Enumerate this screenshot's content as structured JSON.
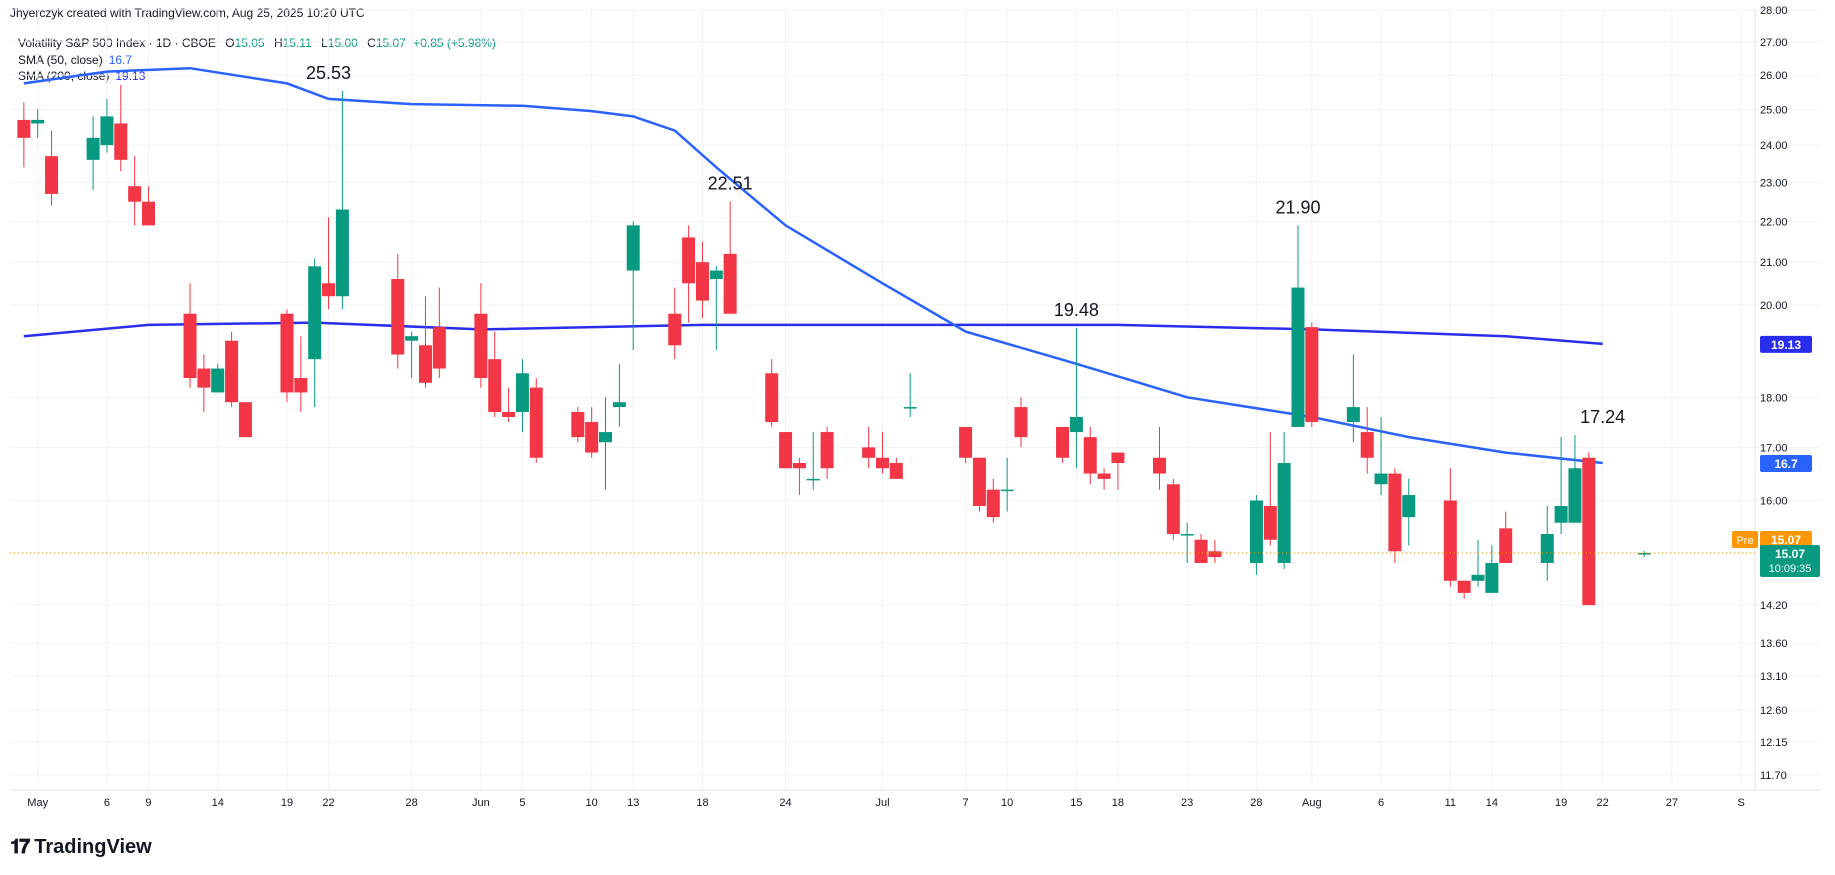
{
  "header": {
    "attribution": "Jhyerczyk created with TradingView.com, Aug 25, 2025 10:20 UTC"
  },
  "legend": {
    "symbol": "Volatility S&P 500 Index · 1D · CBOE",
    "open_label": "O",
    "open": "15.05",
    "high_label": "H",
    "high": "15.11",
    "low_label": "L",
    "low": "15.00",
    "close_label": "C",
    "close": "15.07",
    "change": "+0.85 (+5.98%)",
    "sma50_label": "SMA (50, close)",
    "sma50_value": "16.7",
    "sma200_label": "SMA (200, close)",
    "sma200_value": "19.13"
  },
  "logo": {
    "text": "TradingView",
    "icon": "tradingview-logo-icon"
  },
  "colors": {
    "up": "#089981",
    "down": "#f23645",
    "sma50": "#2962ff",
    "sma200": "#2a2eec",
    "pre": "#ff9800",
    "grid": "#f0f3fa"
  },
  "chart_data": {
    "type": "candlestick",
    "y_scale": "log",
    "ylim": [
      11.5,
      28.0
    ],
    "y_ticks": [
      "28.00",
      "27.00",
      "26.00",
      "25.00",
      "24.00",
      "23.00",
      "22.00",
      "21.00",
      "20.00",
      "18.00",
      "17.00",
      "16.00",
      "14.20",
      "13.60",
      "13.10",
      "12.60",
      "12.15",
      "11.70"
    ],
    "x_ticks": [
      {
        "label": "May",
        "date": "2025-05-01"
      },
      {
        "label": "6",
        "date": "2025-05-06"
      },
      {
        "label": "9",
        "date": "2025-05-09"
      },
      {
        "label": "14",
        "date": "2025-05-14"
      },
      {
        "label": "19",
        "date": "2025-05-19"
      },
      {
        "label": "22",
        "date": "2025-05-22"
      },
      {
        "label": "28",
        "date": "2025-05-28"
      },
      {
        "label": "Jun",
        "date": "2025-06-02"
      },
      {
        "label": "5",
        "date": "2025-06-05"
      },
      {
        "label": "10",
        "date": "2025-06-10"
      },
      {
        "label": "13",
        "date": "2025-06-13"
      },
      {
        "label": "18",
        "date": "2025-06-18"
      },
      {
        "label": "24",
        "date": "2025-06-24"
      },
      {
        "label": "Jul",
        "date": "2025-07-01"
      },
      {
        "label": "7",
        "date": "2025-07-07"
      },
      {
        "label": "10",
        "date": "2025-07-10"
      },
      {
        "label": "15",
        "date": "2025-07-15"
      },
      {
        "label": "18",
        "date": "2025-07-18"
      },
      {
        "label": "23",
        "date": "2025-07-23"
      },
      {
        "label": "28",
        "date": "2025-07-28"
      },
      {
        "label": "Aug",
        "date": "2025-08-01"
      },
      {
        "label": "6",
        "date": "2025-08-06"
      },
      {
        "label": "11",
        "date": "2025-08-11"
      },
      {
        "label": "14",
        "date": "2025-08-14"
      },
      {
        "label": "19",
        "date": "2025-08-19"
      },
      {
        "label": "22",
        "date": "2025-08-22"
      },
      {
        "label": "27",
        "date": "2025-08-27"
      },
      {
        "label": "S",
        "date": "2025-09-01"
      }
    ],
    "candles": [
      {
        "date": "2025-04-30",
        "o": 24.7,
        "h": 25.2,
        "l": 23.4,
        "c": 24.2
      },
      {
        "date": "2025-05-01",
        "o": 24.6,
        "h": 25.0,
        "l": 24.2,
        "c": 24.7
      },
      {
        "date": "2025-05-02",
        "o": 23.7,
        "h": 24.4,
        "l": 22.4,
        "c": 22.7
      },
      {
        "date": "2025-05-05",
        "o": 23.6,
        "h": 24.8,
        "l": 22.8,
        "c": 24.2
      },
      {
        "date": "2025-05-06",
        "o": 24.0,
        "h": 25.3,
        "l": 23.8,
        "c": 24.8
      },
      {
        "date": "2025-05-07",
        "o": 24.6,
        "h": 25.7,
        "l": 23.3,
        "c": 23.6
      },
      {
        "date": "2025-05-08",
        "o": 22.9,
        "h": 23.7,
        "l": 21.9,
        "c": 22.5
      },
      {
        "date": "2025-05-09",
        "o": 22.5,
        "h": 22.9,
        "l": 21.9,
        "c": 21.9
      },
      {
        "date": "2025-05-12",
        "o": 19.8,
        "h": 20.5,
        "l": 18.2,
        "c": 18.4
      },
      {
        "date": "2025-05-13",
        "o": 18.6,
        "h": 18.9,
        "l": 17.7,
        "c": 18.2
      },
      {
        "date": "2025-05-14",
        "o": 18.1,
        "h": 18.7,
        "l": 18.1,
        "c": 18.6
      },
      {
        "date": "2025-05-15",
        "o": 19.2,
        "h": 19.4,
        "l": 17.8,
        "c": 17.9
      },
      {
        "date": "2025-05-16",
        "o": 17.9,
        "h": 17.9,
        "l": 17.2,
        "c": 17.2
      },
      {
        "date": "2025-05-19",
        "o": 19.8,
        "h": 19.9,
        "l": 17.9,
        "c": 18.1
      },
      {
        "date": "2025-05-20",
        "o": 18.4,
        "h": 19.3,
        "l": 17.7,
        "c": 18.1
      },
      {
        "date": "2025-05-21",
        "o": 18.8,
        "h": 21.1,
        "l": 17.8,
        "c": 20.9
      },
      {
        "date": "2025-05-22",
        "o": 20.5,
        "h": 22.1,
        "l": 19.9,
        "c": 20.2
      },
      {
        "date": "2025-05-23",
        "o": 20.2,
        "h": 25.53,
        "l": 19.9,
        "c": 22.3
      },
      {
        "date": "2025-05-27",
        "o": 20.6,
        "h": 21.2,
        "l": 18.6,
        "c": 18.9
      },
      {
        "date": "2025-05-28",
        "o": 19.2,
        "h": 19.4,
        "l": 18.4,
        "c": 19.3
      },
      {
        "date": "2025-05-29",
        "o": 19.1,
        "h": 20.2,
        "l": 18.2,
        "c": 18.3
      },
      {
        "date": "2025-05-30",
        "o": 19.5,
        "h": 20.4,
        "l": 18.4,
        "c": 18.6
      },
      {
        "date": "2025-06-02",
        "o": 19.8,
        "h": 20.5,
        "l": 18.2,
        "c": 18.4
      },
      {
        "date": "2025-06-03",
        "o": 18.8,
        "h": 19.4,
        "l": 17.6,
        "c": 17.7
      },
      {
        "date": "2025-06-04",
        "o": 17.7,
        "h": 18.2,
        "l": 17.5,
        "c": 17.6
      },
      {
        "date": "2025-06-05",
        "o": 17.7,
        "h": 18.8,
        "l": 17.3,
        "c": 18.5
      },
      {
        "date": "2025-06-06",
        "o": 18.2,
        "h": 18.4,
        "l": 16.7,
        "c": 16.8
      },
      {
        "date": "2025-06-09",
        "o": 17.7,
        "h": 17.8,
        "l": 17.1,
        "c": 17.2
      },
      {
        "date": "2025-06-10",
        "o": 17.5,
        "h": 17.8,
        "l": 16.8,
        "c": 16.9
      },
      {
        "date": "2025-06-11",
        "o": 17.1,
        "h": 18.0,
        "l": 16.2,
        "c": 17.3
      },
      {
        "date": "2025-06-12",
        "o": 17.8,
        "h": 18.7,
        "l": 17.4,
        "c": 17.9
      },
      {
        "date": "2025-06-13",
        "o": 20.8,
        "h": 22.0,
        "l": 19.0,
        "c": 21.9
      },
      {
        "date": "2025-06-16",
        "o": 19.8,
        "h": 20.4,
        "l": 18.8,
        "c": 19.1
      },
      {
        "date": "2025-06-17",
        "o": 21.6,
        "h": 21.9,
        "l": 19.6,
        "c": 20.5
      },
      {
        "date": "2025-06-18",
        "o": 21.0,
        "h": 21.5,
        "l": 19.7,
        "c": 20.1
      },
      {
        "date": "2025-06-19",
        "o": 20.6,
        "h": 20.9,
        "l": 19.0,
        "c": 20.8
      },
      {
        "date": "2025-06-20",
        "o": 21.2,
        "h": 22.51,
        "l": 19.8,
        "c": 19.8
      },
      {
        "date": "2025-06-23",
        "o": 18.5,
        "h": 18.8,
        "l": 17.4,
        "c": 17.5
      },
      {
        "date": "2025-06-24",
        "o": 17.3,
        "h": 17.3,
        "l": 16.6,
        "c": 16.6
      },
      {
        "date": "2025-06-25",
        "o": 16.7,
        "h": 16.8,
        "l": 16.1,
        "c": 16.6
      },
      {
        "date": "2025-06-26",
        "o": 16.4,
        "h": 17.3,
        "l": 16.2,
        "c": 16.4
      },
      {
        "date": "2025-06-27",
        "o": 17.3,
        "h": 17.4,
        "l": 16.4,
        "c": 16.6
      },
      {
        "date": "2025-06-30",
        "o": 17.0,
        "h": 17.4,
        "l": 16.6,
        "c": 16.8
      },
      {
        "date": "2025-07-01",
        "o": 16.8,
        "h": 17.3,
        "l": 16.5,
        "c": 16.6
      },
      {
        "date": "2025-07-02",
        "o": 16.7,
        "h": 16.8,
        "l": 16.4,
        "c": 16.4
      },
      {
        "date": "2025-07-03",
        "o": 17.8,
        "h": 18.5,
        "l": 17.6,
        "c": 17.8
      },
      {
        "date": "2025-07-07",
        "o": 17.4,
        "h": 17.4,
        "l": 16.7,
        "c": 16.8
      },
      {
        "date": "2025-07-08",
        "o": 16.8,
        "h": 16.8,
        "l": 15.8,
        "c": 15.9
      },
      {
        "date": "2025-07-09",
        "o": 16.2,
        "h": 16.4,
        "l": 15.6,
        "c": 15.7
      },
      {
        "date": "2025-07-10",
        "o": 16.2,
        "h": 16.8,
        "l": 15.8,
        "c": 16.2
      },
      {
        "date": "2025-07-11",
        "o": 17.8,
        "h": 18.0,
        "l": 17.0,
        "c": 17.2
      },
      {
        "date": "2025-07-14",
        "o": 17.4,
        "h": 17.4,
        "l": 16.7,
        "c": 16.8
      },
      {
        "date": "2025-07-15",
        "o": 17.3,
        "h": 19.48,
        "l": 16.6,
        "c": 17.6
      },
      {
        "date": "2025-07-16",
        "o": 17.2,
        "h": 17.4,
        "l": 16.3,
        "c": 16.5
      },
      {
        "date": "2025-07-17",
        "o": 16.5,
        "h": 16.6,
        "l": 16.2,
        "c": 16.4
      },
      {
        "date": "2025-07-18",
        "o": 16.9,
        "h": 16.9,
        "l": 16.2,
        "c": 16.7
      },
      {
        "date": "2025-07-21",
        "o": 16.8,
        "h": 17.4,
        "l": 16.2,
        "c": 16.5
      },
      {
        "date": "2025-07-22",
        "o": 16.3,
        "h": 16.4,
        "l": 15.3,
        "c": 15.4
      },
      {
        "date": "2025-07-23",
        "o": 15.4,
        "h": 15.6,
        "l": 14.9,
        "c": 15.4
      },
      {
        "date": "2025-07-24",
        "o": 15.3,
        "h": 15.4,
        "l": 14.9,
        "c": 14.9
      },
      {
        "date": "2025-07-25",
        "o": 15.1,
        "h": 15.3,
        "l": 14.9,
        "c": 15.0
      },
      {
        "date": "2025-07-28",
        "o": 14.9,
        "h": 16.1,
        "l": 14.7,
        "c": 16.0
      },
      {
        "date": "2025-07-29",
        "o": 15.9,
        "h": 17.3,
        "l": 15.2,
        "c": 15.3
      },
      {
        "date": "2025-07-30",
        "o": 14.9,
        "h": 17.3,
        "l": 14.8,
        "c": 16.7
      },
      {
        "date": "2025-07-31",
        "o": 17.4,
        "h": 21.9,
        "l": 17.4,
        "c": 20.4
      },
      {
        "date": "2025-08-01",
        "o": 19.5,
        "h": 19.6,
        "l": 17.4,
        "c": 17.5
      },
      {
        "date": "2025-08-04",
        "o": 17.5,
        "h": 18.9,
        "l": 17.1,
        "c": 17.8
      },
      {
        "date": "2025-08-05",
        "o": 17.3,
        "h": 17.8,
        "l": 16.5,
        "c": 16.8
      },
      {
        "date": "2025-08-06",
        "o": 16.3,
        "h": 17.6,
        "l": 16.1,
        "c": 16.5
      },
      {
        "date": "2025-08-07",
        "o": 16.5,
        "h": 16.6,
        "l": 14.9,
        "c": 15.1
      },
      {
        "date": "2025-08-08",
        "o": 15.7,
        "h": 16.4,
        "l": 15.2,
        "c": 16.1
      },
      {
        "date": "2025-08-11",
        "o": 16.0,
        "h": 16.6,
        "l": 14.5,
        "c": 14.6
      },
      {
        "date": "2025-08-12",
        "o": 14.6,
        "h": 14.6,
        "l": 14.3,
        "c": 14.4
      },
      {
        "date": "2025-08-13",
        "o": 14.6,
        "h": 15.3,
        "l": 14.5,
        "c": 14.7
      },
      {
        "date": "2025-08-14",
        "o": 14.4,
        "h": 15.2,
        "l": 14.4,
        "c": 14.9
      },
      {
        "date": "2025-08-15",
        "o": 15.5,
        "h": 15.8,
        "l": 14.9,
        "c": 14.9
      },
      {
        "date": "2025-08-18",
        "o": 14.9,
        "h": 15.9,
        "l": 14.6,
        "c": 15.4
      },
      {
        "date": "2025-08-19",
        "o": 15.6,
        "h": 17.2,
        "l": 15.4,
        "c": 15.9
      },
      {
        "date": "2025-08-20",
        "o": 15.6,
        "h": 17.24,
        "l": 15.6,
        "c": 16.6
      },
      {
        "date": "2025-08-21",
        "o": 16.8,
        "h": 16.9,
        "l": 14.2,
        "c": 14.2
      },
      {
        "date": "2025-08-25",
        "o": 15.05,
        "h": 15.11,
        "l": 15.0,
        "c": 15.07
      }
    ],
    "sma50": [
      {
        "date": "2025-04-30",
        "v": 25.75
      },
      {
        "date": "2025-05-06",
        "v": 26.1
      },
      {
        "date": "2025-05-12",
        "v": 26.2
      },
      {
        "date": "2025-05-19",
        "v": 25.75
      },
      {
        "date": "2025-05-22",
        "v": 25.3
      },
      {
        "date": "2025-05-28",
        "v": 25.15
      },
      {
        "date": "2025-06-05",
        "v": 25.1
      },
      {
        "date": "2025-06-10",
        "v": 24.95
      },
      {
        "date": "2025-06-13",
        "v": 24.8
      },
      {
        "date": "2025-06-16",
        "v": 24.4
      },
      {
        "date": "2025-06-19",
        "v": 23.4
      },
      {
        "date": "2025-06-24",
        "v": 21.9
      },
      {
        "date": "2025-07-01",
        "v": 20.5
      },
      {
        "date": "2025-07-07",
        "v": 19.4
      },
      {
        "date": "2025-07-15",
        "v": 18.7
      },
      {
        "date": "2025-07-23",
        "v": 18.0
      },
      {
        "date": "2025-08-01",
        "v": 17.6
      },
      {
        "date": "2025-08-08",
        "v": 17.2
      },
      {
        "date": "2025-08-15",
        "v": 16.9
      },
      {
        "date": "2025-08-22",
        "v": 16.7
      }
    ],
    "sma200": [
      {
        "date": "2025-04-30",
        "v": 19.3
      },
      {
        "date": "2025-05-09",
        "v": 19.55
      },
      {
        "date": "2025-05-21",
        "v": 19.6
      },
      {
        "date": "2025-06-02",
        "v": 19.45
      },
      {
        "date": "2025-06-18",
        "v": 19.55
      },
      {
        "date": "2025-07-01",
        "v": 19.55
      },
      {
        "date": "2025-07-18",
        "v": 19.55
      },
      {
        "date": "2025-08-01",
        "v": 19.45
      },
      {
        "date": "2025-08-15",
        "v": 19.3
      },
      {
        "date": "2025-08-22",
        "v": 19.13
      }
    ],
    "annotations": [
      {
        "text": "25.53",
        "date": "2025-05-22",
        "value": 25.53
      },
      {
        "text": "22.51",
        "date": "2025-06-20",
        "value": 22.51
      },
      {
        "text": "19.48",
        "date": "2025-07-15",
        "value": 19.48
      },
      {
        "text": "21.90",
        "date": "2025-07-31",
        "value": 21.9
      },
      {
        "text": "17.24",
        "date": "2025-08-22",
        "value": 17.24
      }
    ],
    "price_markers": {
      "sma200": "19.13",
      "sma50": "16.7",
      "pre_label": "Pre",
      "pre_value": "15.07",
      "last_value": "15.07",
      "countdown": "10:09:35"
    }
  }
}
